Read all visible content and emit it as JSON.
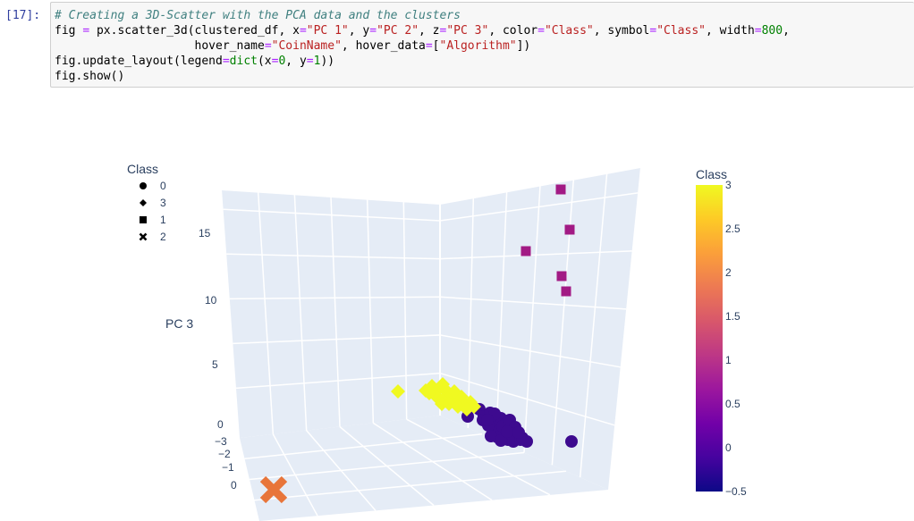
{
  "cell": {
    "prompt": "[17]:",
    "lines": [
      [
        {
          "t": "# Creating a 3D-Scatter with the PCA data and the clusters",
          "c": "cm"
        }
      ],
      [
        {
          "t": "fig ",
          "c": ""
        },
        {
          "t": "=",
          "c": "op"
        },
        {
          "t": " px.scatter_3d(clustered_df, x",
          "c": ""
        },
        {
          "t": "=",
          "c": "op"
        },
        {
          "t": "\"PC 1\"",
          "c": "st"
        },
        {
          "t": ", y",
          "c": ""
        },
        {
          "t": "=",
          "c": "op"
        },
        {
          "t": "\"PC 2\"",
          "c": "st"
        },
        {
          "t": ", z",
          "c": ""
        },
        {
          "t": "=",
          "c": "op"
        },
        {
          "t": "\"PC 3\"",
          "c": "st"
        },
        {
          "t": ", color",
          "c": ""
        },
        {
          "t": "=",
          "c": "op"
        },
        {
          "t": "\"Class\"",
          "c": "st"
        },
        {
          "t": ", symbol",
          "c": ""
        },
        {
          "t": "=",
          "c": "op"
        },
        {
          "t": "\"Class\"",
          "c": "st"
        },
        {
          "t": ", width",
          "c": ""
        },
        {
          "t": "=",
          "c": "op"
        },
        {
          "t": "800",
          "c": "nm"
        },
        {
          "t": ",",
          "c": ""
        }
      ],
      [
        {
          "t": "                    hover_name",
          "c": ""
        },
        {
          "t": "=",
          "c": "op"
        },
        {
          "t": "\"CoinName\"",
          "c": "st"
        },
        {
          "t": ", hover_data",
          "c": ""
        },
        {
          "t": "=",
          "c": "op"
        },
        {
          "t": "[",
          "c": ""
        },
        {
          "t": "\"Algorithm\"",
          "c": "st"
        },
        {
          "t": "])",
          "c": ""
        }
      ],
      [
        {
          "t": "fig.update_layout(legend",
          "c": ""
        },
        {
          "t": "=",
          "c": "op"
        },
        {
          "t": "dict",
          "c": "bi"
        },
        {
          "t": "(x",
          "c": ""
        },
        {
          "t": "=",
          "c": "op"
        },
        {
          "t": "0",
          "c": "nm"
        },
        {
          "t": ", y",
          "c": ""
        },
        {
          "t": "=",
          "c": "op"
        },
        {
          "t": "1",
          "c": "nm"
        },
        {
          "t": "))",
          "c": ""
        }
      ],
      [
        {
          "t": "fig.show()",
          "c": ""
        }
      ]
    ]
  },
  "chart_data": {
    "type": "scatter",
    "zlabel": "PC 3",
    "z_ticks": [
      "0",
      "5",
      "10",
      "15"
    ],
    "y_ticks": [
      "−3",
      "−2",
      "−1",
      "0"
    ],
    "legend": {
      "title": "Class",
      "placement": "top-left",
      "entries": [
        {
          "label": "0",
          "symbol": "circle",
          "color": "#0d0887"
        },
        {
          "label": "3",
          "symbol": "diamond",
          "color": "#f0f921"
        },
        {
          "label": "1",
          "symbol": "square",
          "color": "#9c179e"
        },
        {
          "label": "2",
          "symbol": "x",
          "color": "#ed7953"
        }
      ]
    },
    "colorbar": {
      "title": "Class",
      "min": -0.5,
      "max": 3,
      "ticks": [
        "3",
        "2.5",
        "2",
        "1.5",
        "1",
        "0.5",
        "0",
        "−0.5"
      ],
      "colors": [
        "#0d0887",
        "#46039f",
        "#7201a8",
        "#9c179e",
        "#bd3786",
        "#d8576b",
        "#ed7953",
        "#fb9f3a",
        "#fdca26",
        "#f0f921"
      ]
    },
    "series": [
      {
        "name": "0",
        "color": "#3d0a8f",
        "symbol": "circle"
      },
      {
        "name": "3",
        "color": "#f0f921",
        "symbol": "diamond"
      },
      {
        "name": "1",
        "color": "#a21a84",
        "symbol": "square"
      },
      {
        "name": "2",
        "color": "#e8753a",
        "symbol": "x"
      }
    ]
  }
}
